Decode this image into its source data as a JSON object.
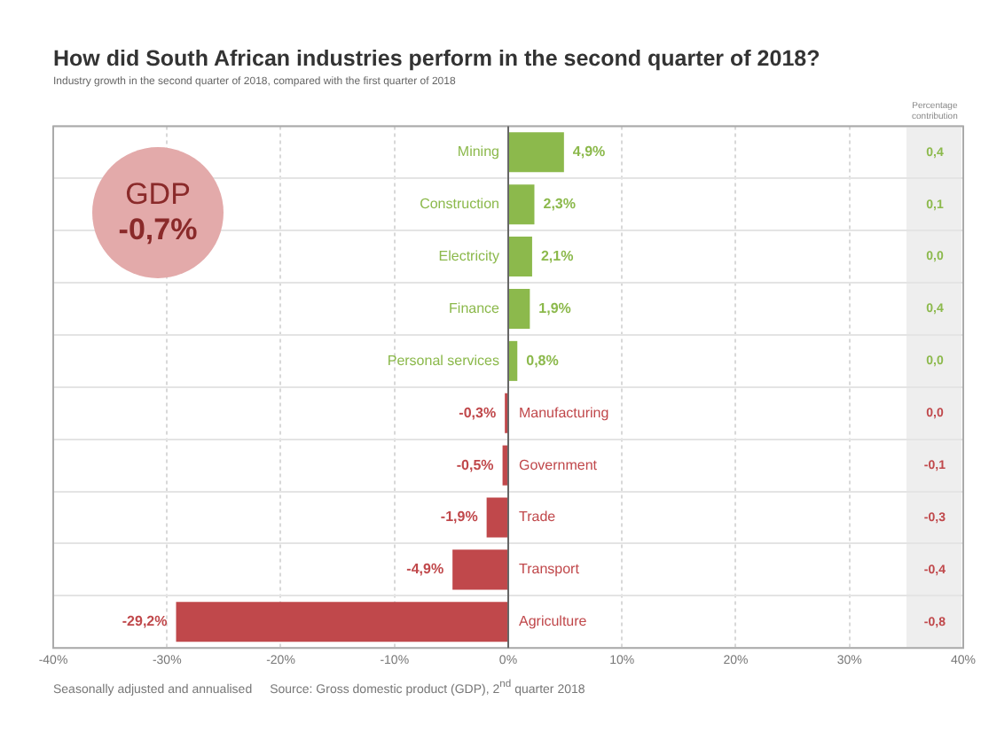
{
  "chart_data": {
    "type": "bar",
    "orientation": "horizontal",
    "title": "How did South African industries perform in the second quarter of 2018?",
    "subtitle": "Industry growth in the second quarter of 2018, compared with the first quarter of 2018",
    "categories": [
      "Mining",
      "Construction",
      "Electricity",
      "Finance",
      "Personal services",
      "Manufacturing",
      "Government",
      "Trade",
      "Transport",
      "Agriculture"
    ],
    "values": [
      4.9,
      2.3,
      2.1,
      1.9,
      0.8,
      -0.3,
      -0.5,
      -1.9,
      -4.9,
      -29.2
    ],
    "value_labels": [
      "4,9%",
      "2,3%",
      "2,1%",
      "1,9%",
      "0,8%",
      "-0,3%",
      "-0,5%",
      "-1,9%",
      "-4,9%",
      "-29,2%"
    ],
    "colors": [
      "#8cb94c",
      "#8cb94c",
      "#8cb94c",
      "#8cb94c",
      "#8cb94c",
      "#c0484b",
      "#c0484b",
      "#c0484b",
      "#c0484b",
      "#c0484b"
    ],
    "xlim": [
      -40,
      40
    ],
    "xticks": [
      {
        "value": -40,
        "label": "-40%"
      },
      {
        "value": -30,
        "label": "-30%"
      },
      {
        "value": -20,
        "label": "-20%"
      },
      {
        "value": -10,
        "label": "-10%"
      },
      {
        "value": 0,
        "label": "0%"
      },
      {
        "value": 10,
        "label": "10%"
      },
      {
        "value": 20,
        "label": "20%"
      },
      {
        "value": 30,
        "label": "30%"
      },
      {
        "value": 40,
        "label": "40%"
      }
    ],
    "grid": true,
    "legend": false,
    "annotations": [
      "Seasonally adjusted and annualised",
      "Source: Gross domestic product (GDP), 2$^{nd}$ quarter 2018",
      "Percentage contribution",
      "GDP",
      "-0,7%",
      "0,4",
      "0,1",
      "0,0",
      "0,4",
      "0,0",
      "0,0",
      "-0,1",
      "-0,3",
      "-0,4",
      "-0,8"
    ]
  }
}
